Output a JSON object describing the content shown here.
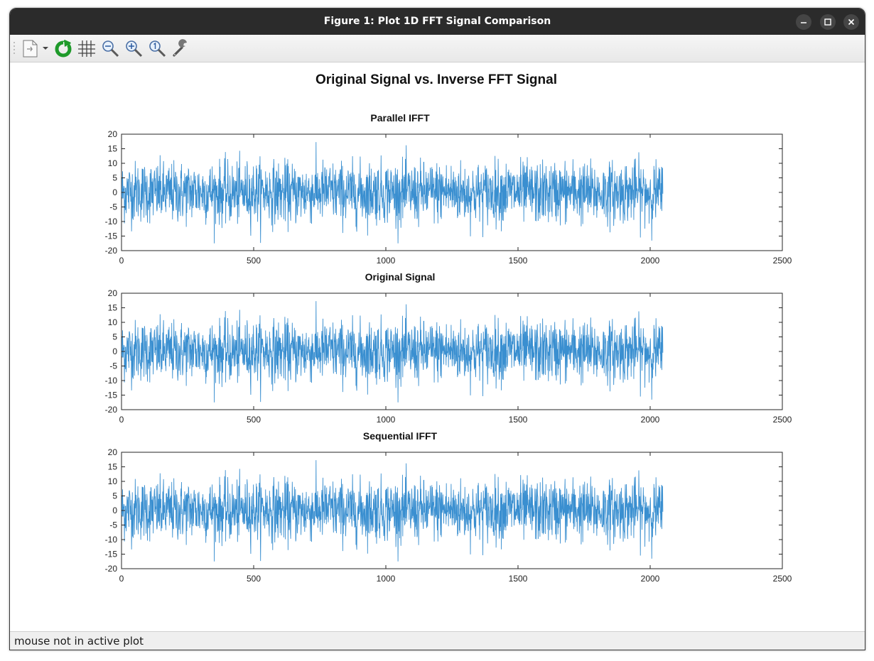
{
  "window": {
    "title": "Figure 1: Plot 1D FFT Signal Comparison"
  },
  "titlebar_buttons": [
    {
      "icon": "minimize-icon"
    },
    {
      "icon": "maximize-icon"
    },
    {
      "icon": "close-icon"
    }
  ],
  "toolbar": {
    "items": [
      {
        "icon": "new-figure-icon"
      },
      {
        "icon": "dropdown-arrow-icon"
      },
      {
        "icon": "refresh-icon"
      },
      {
        "icon": "grid-icon"
      },
      {
        "icon": "zoom-out-icon"
      },
      {
        "icon": "zoom-in-icon"
      },
      {
        "icon": "zoom-reset-icon"
      },
      {
        "icon": "wrench-icon"
      }
    ]
  },
  "figure": {
    "title": "Original Signal vs. Inverse FFT Signal"
  },
  "colors": {
    "line": "#3a8fd0",
    "titlebar": "#2b2b2b"
  },
  "chart_data": [
    {
      "type": "line",
      "title": "Parallel IFFT",
      "xlabel": "",
      "ylabel": "",
      "xlim": [
        0,
        2500
      ],
      "ylim": [
        -20,
        20
      ],
      "xticks": [
        "0",
        "500",
        "1000",
        "1500",
        "2000",
        "2500"
      ],
      "yticks": [
        "20",
        "15",
        "10",
        "5",
        "0",
        "-5",
        "-10",
        "-15",
        "-20"
      ],
      "n_points": 2048,
      "signal_range": [
        -17.5,
        18.5
      ],
      "grid": false
    },
    {
      "type": "line",
      "title": "Original Signal",
      "xlabel": "",
      "ylabel": "",
      "xlim": [
        0,
        2500
      ],
      "ylim": [
        -20,
        20
      ],
      "xticks": [
        "0",
        "500",
        "1000",
        "1500",
        "2000",
        "2500"
      ],
      "yticks": [
        "20",
        "15",
        "10",
        "5",
        "0",
        "-5",
        "-10",
        "-15",
        "-20"
      ],
      "n_points": 2048,
      "signal_range": [
        -17.5,
        18.5
      ],
      "grid": false
    },
    {
      "type": "line",
      "title": "Sequential IFFT",
      "xlabel": "",
      "ylabel": "",
      "xlim": [
        0,
        2500
      ],
      "ylim": [
        -20,
        20
      ],
      "xticks": [
        "0",
        "500",
        "1000",
        "1500",
        "2000",
        "2500"
      ],
      "yticks": [
        "20",
        "15",
        "10",
        "5",
        "0",
        "-5",
        "-10",
        "-15",
        "-20"
      ],
      "n_points": 2048,
      "signal_range": [
        -17.5,
        18.5
      ],
      "grid": false
    }
  ],
  "status": {
    "text": "mouse not in active plot"
  }
}
